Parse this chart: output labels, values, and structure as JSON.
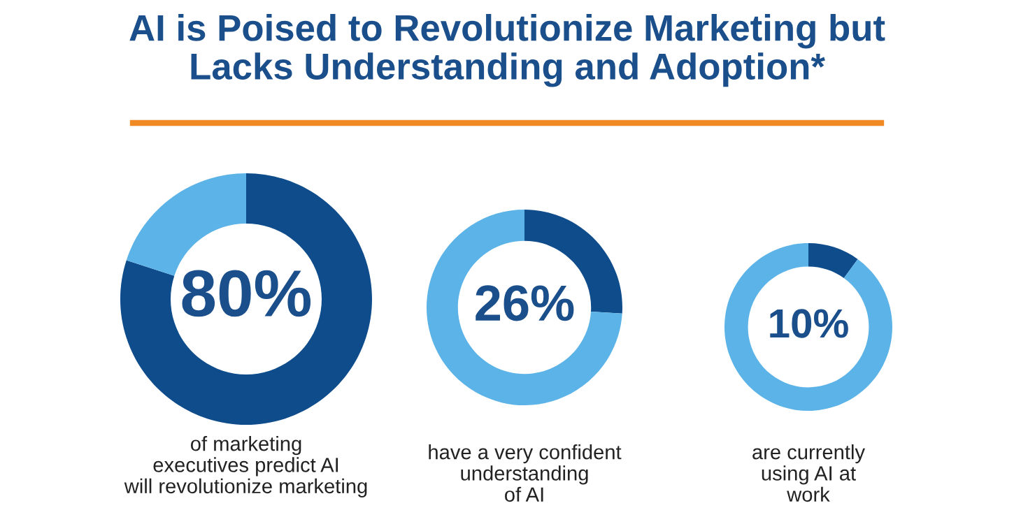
{
  "chart_data": [
    {
      "type": "donut",
      "title": "AI is Poised to Revolutionize Marketing but\nLacks Understanding and Adoption*",
      "categories": [
        null,
        null
      ],
      "values": [
        80,
        20
      ],
      "colors": [
        "#0f4c8c",
        "#5cb3e8"
      ],
      "value_labels": [
        "80%",
        null
      ],
      "annotations": [
        "of marketing\nexecutives predict AI\nwill revolutionize marketing"
      ]
    },
    {
      "type": "donut",
      "categories": [
        null,
        null
      ],
      "values": [
        26,
        74
      ],
      "colors": [
        "#0f4c8c",
        "#5cb3e8"
      ],
      "value_labels": [
        "26%",
        null
      ],
      "annotations": [
        "have a very confident\nunderstanding\nof AI"
      ]
    },
    {
      "type": "donut",
      "categories": [
        null,
        null
      ],
      "values": [
        10,
        90
      ],
      "colors": [
        "#0f4c8c",
        "#5cb3e8"
      ],
      "value_labels": [
        "10%",
        null
      ],
      "annotations": [
        "are currently\nusing AI at\nwork"
      ]
    }
  ]
}
